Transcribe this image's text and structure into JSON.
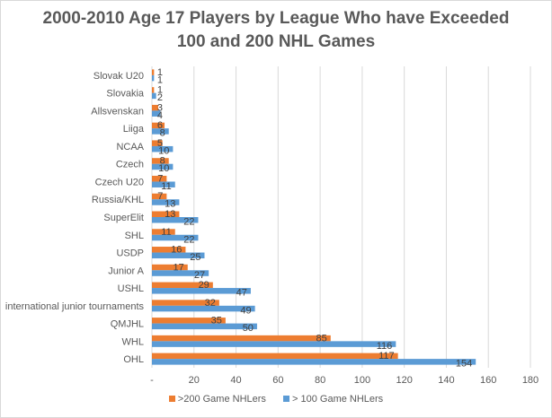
{
  "chart_data": {
    "type": "bar",
    "orientation": "horizontal",
    "title_lines": [
      "2000-2010 Age 17 Players by League Who have Exceeded",
      "100 and 200 NHL Games"
    ],
    "categories": [
      "Slovak U20",
      "Slovakia",
      "Allsvenskan",
      "Liiga",
      "NCAA",
      "Czech",
      "Czech U20",
      "Russia/KHL",
      "SuperElit",
      "SHL",
      "USDP",
      "Junior A",
      "USHL",
      "international junior tournaments",
      "QMJHL",
      "WHL",
      "OHL"
    ],
    "series": [
      {
        "name": ">200 Game NHLers",
        "color": "#ed7d31",
        "values": [
          1,
          1,
          3,
          6,
          5,
          8,
          7,
          7,
          13,
          11,
          16,
          17,
          29,
          32,
          35,
          85,
          117
        ]
      },
      {
        "name": "> 100 Game NHLers",
        "color": "#5b9bd5",
        "values": [
          1,
          2,
          4,
          8,
          10,
          10,
          11,
          13,
          22,
          22,
          25,
          27,
          47,
          49,
          50,
          116,
          154
        ]
      }
    ],
    "xlim": [
      0,
      180
    ],
    "xticks": [
      "-",
      "20",
      "40",
      "60",
      "80",
      "100",
      "120",
      "140",
      "160",
      "180"
    ],
    "grid": true,
    "legend_position": "bottom"
  }
}
